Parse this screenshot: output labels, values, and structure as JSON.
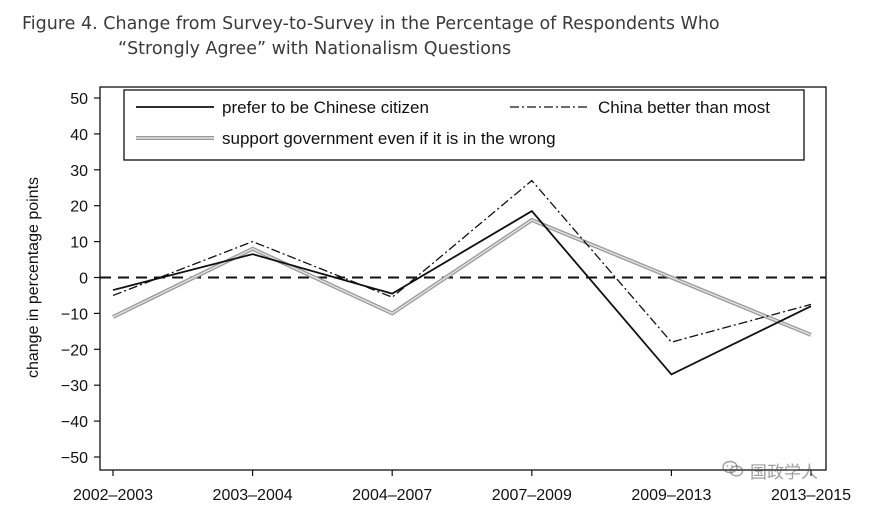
{
  "figure": {
    "title_line1": "Figure 4.  Change from Survey-to-Survey in the Percentage of Respondents Who",
    "title_line2": "“Strongly Agree” with Nationalism Questions"
  },
  "watermark": {
    "text": "国政学人",
    "icon": "wechat-icon"
  },
  "chart_data": {
    "type": "line",
    "categories": [
      "2002–2003",
      "2003–2004",
      "2004–2007",
      "2007–2009",
      "2009–2013",
      "2013–2015"
    ],
    "ylabel": "change in percentage points",
    "xlabel": "",
    "ylim": [
      -50,
      50
    ],
    "yticks": [
      50,
      40,
      30,
      20,
      10,
      0,
      -10,
      -20,
      -30,
      -40,
      -50
    ],
    "ytick_labels": [
      "50",
      "40",
      "30",
      "20",
      "10",
      "0",
      "−10",
      "−20",
      "−30",
      "−40",
      "−50"
    ],
    "reference_line": {
      "y": 0,
      "style": "dashed"
    },
    "grid": false,
    "legend_position": "top",
    "series": [
      {
        "name": "prefer to be Chinese citizen",
        "style": "solid",
        "color": "#111111",
        "values": [
          -3.5,
          6.5,
          -4.5,
          18.5,
          -27,
          -8
        ]
      },
      {
        "name": "China better than most",
        "style": "dash-dot",
        "color": "#111111",
        "values": [
          -5,
          10,
          -5.5,
          27,
          -18,
          -7.5
        ]
      },
      {
        "name": "support government even if it is in the wrong",
        "style": "double-gray",
        "color": "#9a9a9a",
        "values": [
          -11,
          8,
          -10,
          16,
          0,
          -16
        ]
      }
    ]
  }
}
